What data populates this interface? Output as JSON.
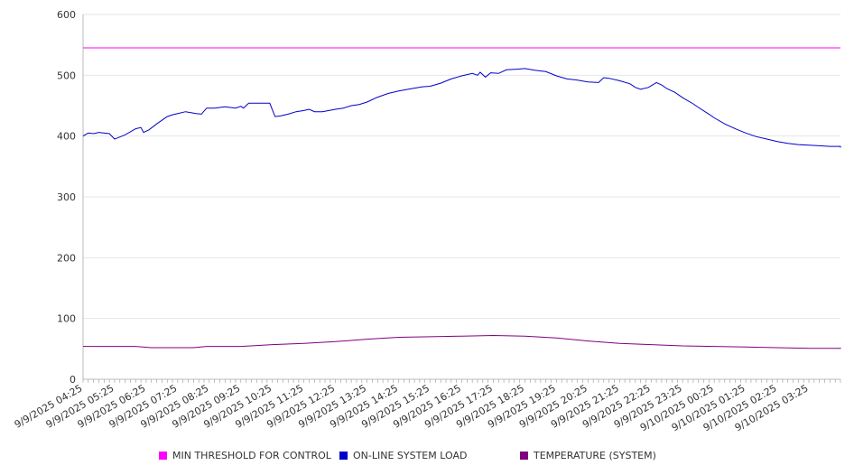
{
  "chart_data": {
    "type": "line",
    "title": "",
    "xlabel": "",
    "ylabel": "",
    "ylim": [
      0,
      600
    ],
    "yticks": [
      0,
      100,
      200,
      300,
      400,
      500,
      600
    ],
    "grid": true,
    "legend_position": "bottom",
    "x_tick_labels": [
      "9/9/2025 04:25",
      "9/9/2025 05:25",
      "9/9/2025 06:25",
      "9/9/2025 07:25",
      "9/9/2025 08:25",
      "9/9/2025 09:25",
      "9/9/2025 10:25",
      "9/9/2025 11:25",
      "9/9/2025 12:25",
      "9/9/2025 13:25",
      "9/9/2025 14:25",
      "9/9/2025 15:25",
      "9/9/2025 16:25",
      "9/9/2025 17:25",
      "9/9/2025 18:25",
      "9/9/2025 19:25",
      "9/9/2025 20:25",
      "9/9/2025 21:25",
      "9/9/2025 22:25",
      "9/9/2025 23:25",
      "9/10/2025 00:25",
      "9/10/2025 01:25",
      "9/10/2025 02:25",
      "9/10/2025 03:25"
    ],
    "series": [
      {
        "name": "MIN THRESHOLD FOR CONTROL",
        "color": "#ff00ff",
        "points": [
          [
            "9/9/2025 04:25",
            545
          ],
          [
            "9/10/2025 04:25",
            545
          ]
        ]
      },
      {
        "name": "ON-LINE SYSTEM LOAD",
        "color": "#0000cc",
        "points": [
          [
            "9/9/2025 04:25",
            400
          ],
          [
            "9/9/2025 04:35",
            405
          ],
          [
            "9/9/2025 04:45",
            404
          ],
          [
            "9/9/2025 04:55",
            406
          ],
          [
            "9/9/2025 05:15",
            404
          ],
          [
            "9/9/2025 05:25",
            395
          ],
          [
            "9/9/2025 05:45",
            402
          ],
          [
            "9/9/2025 06:05",
            412
          ],
          [
            "9/9/2025 06:15",
            414
          ],
          [
            "9/9/2025 06:20",
            406
          ],
          [
            "9/9/2025 06:30",
            410
          ],
          [
            "9/9/2025 06:45",
            420
          ],
          [
            "9/9/2025 07:05",
            432
          ],
          [
            "9/9/2025 07:15",
            435
          ],
          [
            "9/9/2025 07:25",
            437
          ],
          [
            "9/9/2025 07:40",
            440
          ],
          [
            "9/9/2025 08:00",
            437
          ],
          [
            "9/9/2025 08:10",
            436
          ],
          [
            "9/9/2025 08:20",
            446
          ],
          [
            "9/9/2025 08:35",
            446
          ],
          [
            "9/9/2025 08:55",
            448
          ],
          [
            "9/9/2025 09:15",
            446
          ],
          [
            "9/9/2025 09:25",
            449
          ],
          [
            "9/9/2025 09:30",
            446
          ],
          [
            "9/9/2025 09:40",
            454
          ],
          [
            "9/9/2025 10:20",
            454
          ],
          [
            "9/9/2025 10:30",
            432
          ],
          [
            "9/9/2025 10:40",
            433
          ],
          [
            "9/9/2025 10:55",
            436
          ],
          [
            "9/9/2025 11:10",
            440
          ],
          [
            "9/9/2025 11:25",
            442
          ],
          [
            "9/9/2025 11:35",
            444
          ],
          [
            "9/9/2025 11:45",
            440
          ],
          [
            "9/9/2025 12:00",
            440
          ],
          [
            "9/9/2025 12:25",
            444
          ],
          [
            "9/9/2025 12:40",
            446
          ],
          [
            "9/9/2025 12:55",
            450
          ],
          [
            "9/9/2025 13:10",
            452
          ],
          [
            "9/9/2025 13:25",
            456
          ],
          [
            "9/9/2025 13:45",
            464
          ],
          [
            "9/9/2025 14:05",
            470
          ],
          [
            "9/9/2025 14:25",
            474
          ],
          [
            "9/9/2025 14:50",
            478
          ],
          [
            "9/9/2025 15:10",
            481
          ],
          [
            "9/9/2025 15:25",
            482
          ],
          [
            "9/9/2025 15:45",
            487
          ],
          [
            "9/9/2025 16:05",
            494
          ],
          [
            "9/9/2025 16:25",
            499
          ],
          [
            "9/9/2025 16:45",
            503
          ],
          [
            "9/9/2025 16:55",
            500
          ],
          [
            "9/9/2025 17:00",
            505
          ],
          [
            "9/9/2025 17:10",
            497
          ],
          [
            "9/9/2025 17:20",
            504
          ],
          [
            "9/9/2025 17:35",
            503
          ],
          [
            "9/9/2025 17:50",
            509
          ],
          [
            "9/9/2025 18:10",
            510
          ],
          [
            "9/9/2025 18:25",
            511
          ],
          [
            "9/9/2025 18:45",
            508
          ],
          [
            "9/9/2025 19:05",
            506
          ],
          [
            "9/9/2025 19:25",
            499
          ],
          [
            "9/9/2025 19:45",
            494
          ],
          [
            "9/9/2025 20:05",
            492
          ],
          [
            "9/9/2025 20:25",
            489
          ],
          [
            "9/9/2025 20:45",
            488
          ],
          [
            "9/9/2025 20:55",
            496
          ],
          [
            "9/9/2025 21:05",
            495
          ],
          [
            "9/9/2025 21:25",
            491
          ],
          [
            "9/9/2025 21:45",
            486
          ],
          [
            "9/9/2025 21:55",
            480
          ],
          [
            "9/9/2025 22:05",
            477
          ],
          [
            "9/9/2025 22:20",
            480
          ],
          [
            "9/9/2025 22:35",
            488
          ],
          [
            "9/9/2025 22:45",
            484
          ],
          [
            "9/9/2025 22:55",
            478
          ],
          [
            "9/9/2025 23:10",
            472
          ],
          [
            "9/9/2025 23:25",
            463
          ],
          [
            "9/9/2025 23:45",
            453
          ],
          [
            "9/9/2025 23:55",
            447
          ],
          [
            "9/10/2025 00:15",
            436
          ],
          [
            "9/10/2025 00:25",
            430
          ],
          [
            "9/10/2025 00:45",
            420
          ],
          [
            "9/10/2025 01:05",
            412
          ],
          [
            "9/10/2025 01:25",
            405
          ],
          [
            "9/10/2025 01:45",
            399
          ],
          [
            "9/10/2025 02:05",
            395
          ],
          [
            "9/10/2025 02:25",
            391
          ],
          [
            "9/10/2025 02:45",
            388
          ],
          [
            "9/10/2025 03:05",
            386
          ],
          [
            "9/10/2025 03:25",
            385
          ],
          [
            "9/10/2025 03:45",
            384
          ],
          [
            "9/10/2025 04:05",
            383
          ],
          [
            "9/10/2025 04:25",
            383
          ],
          [
            "9/10/2025 04:45",
            383
          ],
          [
            "9/10/2025 05:05",
            382
          ],
          [
            "9/10/2025 05:25",
            382
          ],
          [
            "9/10/2025 05:45",
            381
          ],
          [
            "9/10/2025 06:00",
            381
          ]
        ]
      },
      {
        "name": "TEMPERATURE (SYSTEM)",
        "color": "#800080",
        "points": [
          [
            "9/9/2025 04:25",
            54
          ],
          [
            "9/9/2025 06:05",
            54
          ],
          [
            "9/9/2025 06:35",
            52
          ],
          [
            "9/9/2025 07:55",
            52
          ],
          [
            "9/9/2025 08:20",
            54
          ],
          [
            "9/9/2025 09:25",
            54
          ],
          [
            "9/9/2025 10:25",
            57
          ],
          [
            "9/9/2025 11:25",
            59
          ],
          [
            "9/9/2025 12:25",
            62
          ],
          [
            "9/9/2025 13:25",
            66
          ],
          [
            "9/9/2025 14:25",
            69
          ],
          [
            "9/9/2025 15:25",
            70
          ],
          [
            "9/9/2025 16:25",
            71
          ],
          [
            "9/9/2025 17:25",
            72
          ],
          [
            "9/9/2025 18:25",
            71
          ],
          [
            "9/9/2025 19:25",
            68
          ],
          [
            "9/9/2025 20:25",
            63
          ],
          [
            "9/9/2025 21:25",
            59
          ],
          [
            "9/9/2025 22:25",
            57
          ],
          [
            "9/9/2025 23:25",
            55
          ],
          [
            "9/10/2025 00:25",
            54
          ],
          [
            "9/10/2025 01:25",
            53
          ],
          [
            "9/10/2025 02:25",
            52
          ],
          [
            "9/10/2025 03:25",
            51
          ],
          [
            "9/10/2025 04:25",
            51
          ],
          [
            "9/10/2025 05:25",
            51
          ],
          [
            "9/10/2025 05:50",
            50
          ],
          [
            "9/10/2025 06:00",
            52
          ]
        ]
      }
    ]
  }
}
